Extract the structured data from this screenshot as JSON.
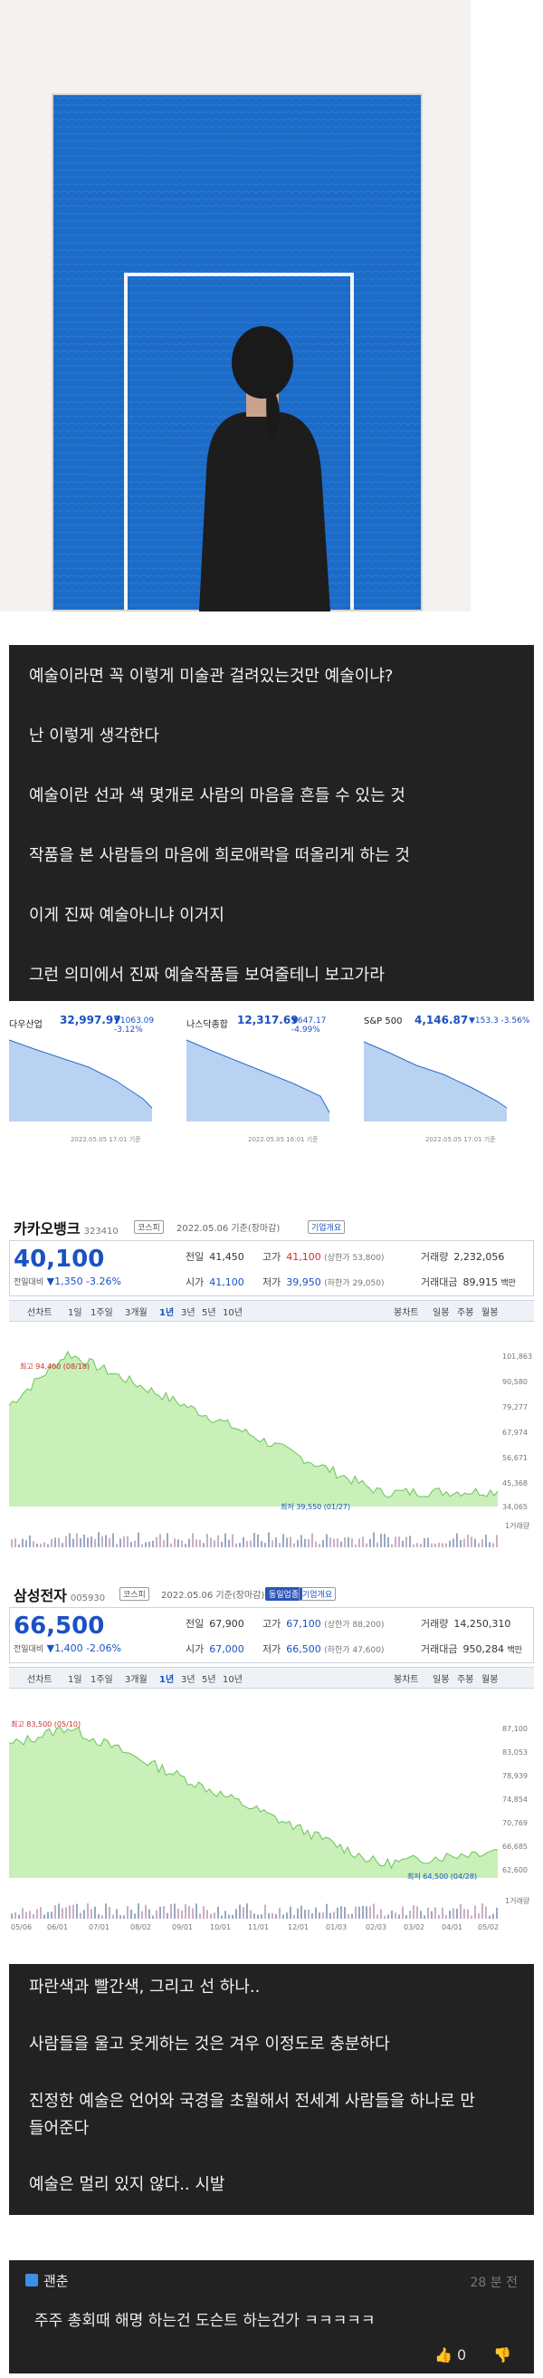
{
  "post": {
    "paragraphs_top": [
      "예술이라면 꼭 이렇게 미술관 걸려있는것만 예술이냐?",
      "난 이렇게 생각한다",
      "예술이란 선과 색 몇개로 사람의 마음을 흔들 수 있는 것",
      "작품을 본 사람들의 마음에 희로애락을 떠올리게 하는 것",
      "이게 진짜 예술아니냐 이거지",
      "그런 의미에서 진짜 예술작품들 보여줄테니 보고가라"
    ],
    "paragraphs_bottom": [
      "파란색과 빨간색, 그리고 선 하나..",
      "사람들을 울고 웃게하는 것은 겨우 이정도로 충분하다",
      "진정한 예술은 언어와 국경을 초월해서 전세계 사람들을 하나로 만",
      "들어준다",
      "예술은 멀리 있지 않다.. 시발"
    ]
  },
  "indices": [
    {
      "name": "다우산업",
      "value": "32,997.97",
      "change": "▼1063.09 -3.12%",
      "footer": "2022.05.05 17:01 기준"
    },
    {
      "name": "나스닥종합",
      "value": "12,317.69",
      "change": "▼647.17 -4.99%",
      "footer": "2022.05.05 16:01 기준"
    },
    {
      "name": "S&P 500",
      "value": "4,146.87",
      "change": "▼153.3 -3.56%",
      "footer": "2022.05.05 17:01 기준"
    }
  ],
  "stocks": [
    {
      "name": "카카오뱅크",
      "code": "323410",
      "market": "코스피",
      "date": "2022.05.06 기준(장마감)",
      "badge": "기업개요",
      "price": "40,100",
      "change_label": "전일대비",
      "change": "▼1,350",
      "pct": "-3.26%",
      "rows": {
        "prev_label": "전일",
        "prev": "41,450",
        "high_label": "고가",
        "high": "41,100",
        "high_note": "(상한가 53,800)",
        "volume_label": "거래량",
        "volume": "2,232,056",
        "open_label": "시가",
        "open": "41,100",
        "low_label": "저가",
        "low": "39,950",
        "low_note": "(하한가 29,050)",
        "amount_label": "거래대금",
        "amount": "89,915",
        "amount_unit": "백만"
      },
      "tabs": [
        "선차트",
        "1일",
        "1주일",
        "3개월",
        "1년",
        "3년",
        "5년",
        "10년"
      ],
      "tabs_right": [
        "봉차트",
        "일봉",
        "주봉",
        "월봉"
      ],
      "max_label": "최고 94,400 (08/18)",
      "min_label": "최저 39,550 (01/27)",
      "y_ticks": [
        "101,863",
        "90,580",
        "79,277",
        "67,974",
        "56,671",
        "45,368",
        "34,065"
      ],
      "volume_label": "1거래량"
    },
    {
      "name": "삼성전자",
      "code": "005930",
      "market": "코스피",
      "date": "2022.05.06 기준(장마감)",
      "badge": "기업개요",
      "badge2": "동일업종",
      "price": "66,500",
      "change_label": "전일대비",
      "change": "▼1,400",
      "pct": "-2.06%",
      "rows": {
        "prev_label": "전일",
        "prev": "67,900",
        "high_label": "고가",
        "high": "67,100",
        "high_note": "(상한가 88,200)",
        "volume_label": "거래량",
        "volume": "14,250,310",
        "open_label": "시가",
        "open": "67,000",
        "low_label": "저가",
        "low": "66,500",
        "low_note": "(하한가 47,600)",
        "amount_label": "거래대금",
        "amount": "950,284",
        "amount_unit": "백만"
      },
      "tabs": [
        "선차트",
        "1일",
        "1주일",
        "3개월",
        "1년",
        "3년",
        "5년",
        "10년"
      ],
      "tabs_right": [
        "봉차트",
        "일봉",
        "주봉",
        "월봉"
      ],
      "max_label": "최고 83,500 (05/10)",
      "min_label": "최저 64,500 (04/28)",
      "y_ticks": [
        "87,100",
        "83,053",
        "78,939",
        "74,854",
        "70,769",
        "66,685",
        "62,600"
      ],
      "x_ticks": [
        "05/06",
        "06/01",
        "07/01",
        "08/02",
        "09/01",
        "10/01",
        "11/01",
        "12/01",
        "01/03",
        "02/03",
        "03/02",
        "04/01",
        "05/02"
      ],
      "volume_label": "1거래량"
    }
  ],
  "comment": {
    "author": "괜춘",
    "time": "28 분 전",
    "text": "주주 총회때 해명 하는건 도슨트 하는건가 ㅋㅋㅋㅋㅋ",
    "likes": "0"
  },
  "chart_data": [
    {
      "type": "area",
      "title": "카카오뱅크",
      "x": [
        "05/06",
        "08/18",
        "01/27",
        "05/06"
      ],
      "series": [
        {
          "values": [
            74000,
            94400,
            39550,
            40100
          ]
        }
      ],
      "ylim": [
        34065,
        101863
      ]
    },
    {
      "type": "area",
      "title": "삼성전자",
      "x": [
        "05/06",
        "05/10",
        "04/28",
        "05/06"
      ],
      "series": [
        {
          "values": [
            81000,
            83500,
            64500,
            66500
          ]
        }
      ],
      "ylim": [
        62600,
        87100
      ]
    }
  ],
  "colors": {
    "accent_blue": "#1a52c4",
    "down_blue": "#1a52c4",
    "up_red": "#d62a2a",
    "panel_dark": "#222222",
    "painting_blue": "#1b6bc7"
  }
}
